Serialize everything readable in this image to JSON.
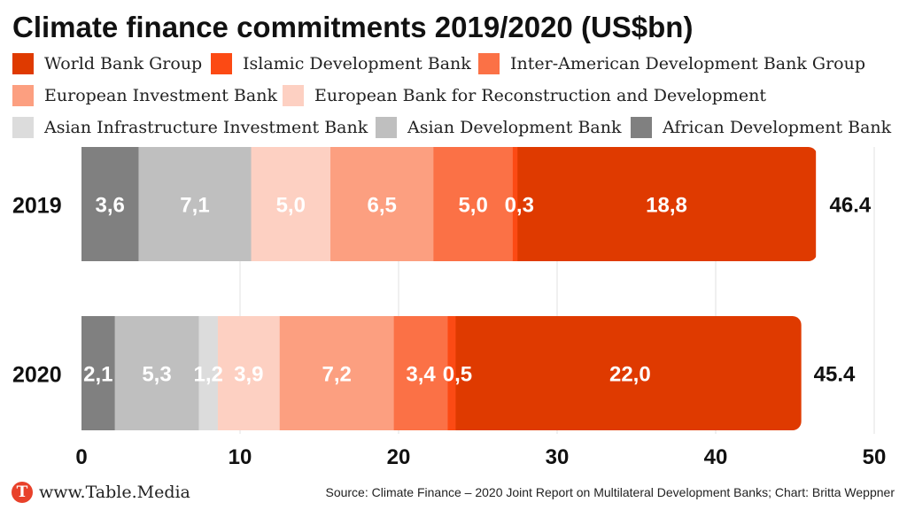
{
  "chart_data": {
    "type": "bar",
    "orientation": "horizontal",
    "stacked": true,
    "title": "Climate finance commitments 2019/2020 (US$bn)",
    "xlabel": "",
    "ylabel": "",
    "xlim": [
      0,
      50
    ],
    "x_ticks": [
      "0",
      "10",
      "20",
      "30",
      "40",
      "50"
    ],
    "grid": "vertical",
    "legend_position": "top",
    "categories": [
      "2019",
      "2020"
    ],
    "totals": [
      46.4,
      45.4
    ],
    "total_labels": [
      "46.4",
      "45.4"
    ],
    "series": [
      {
        "name": "African Development Bank",
        "color": "#808080",
        "values": [
          3.6,
          2.1
        ],
        "labels": [
          "3,6",
          "2,1"
        ]
      },
      {
        "name": "Asian Development Bank",
        "color": "#bfbfbf",
        "values": [
          7.1,
          5.3
        ],
        "labels": [
          "7,1",
          "5,3"
        ]
      },
      {
        "name": "Asian Infrastructure Investment Bank",
        "color": "#dcdcdc",
        "values": [
          0,
          1.2
        ],
        "labels": [
          "",
          "1,2"
        ]
      },
      {
        "name": "European Bank for Reconstruction and Development",
        "color": "#fdd0c2",
        "values": [
          5.0,
          3.9
        ],
        "labels": [
          "5,0",
          "3,9"
        ]
      },
      {
        "name": "European Investment Bank",
        "color": "#fc9f80",
        "values": [
          6.5,
          7.2
        ],
        "labels": [
          "6,5",
          "7,2"
        ]
      },
      {
        "name": "Inter-American Development Bank Group",
        "color": "#fb7146",
        "values": [
          5.0,
          3.4
        ],
        "labels": [
          "5,0",
          "3,4"
        ]
      },
      {
        "name": "Islamic Development Bank",
        "color": "#fc4a14",
        "values": [
          0.3,
          0.5
        ],
        "labels": [
          "0,3",
          "0,5"
        ]
      },
      {
        "name": "World Bank Group",
        "color": "#df3a00",
        "values": [
          18.8,
          22.0
        ],
        "labels": [
          "18,8",
          "22,0"
        ]
      }
    ],
    "legend": [
      {
        "name": "World Bank Group",
        "color": "#df3a00"
      },
      {
        "name": "Islamic Development Bank",
        "color": "#fc4a14"
      },
      {
        "name": "Inter-American Development Bank Group",
        "color": "#fb7146"
      },
      {
        "name": "European Investment Bank",
        "color": "#fc9f80"
      },
      {
        "name": "European Bank for Reconstruction and Development",
        "color": "#fdd0c2"
      },
      {
        "name": "Asian Infrastructure Investment Bank",
        "color": "#dcdcdc"
      },
      {
        "name": "Asian Development Bank",
        "color": "#bfbfbf"
      },
      {
        "name": "African Development Bank",
        "color": "#808080"
      }
    ]
  },
  "footer": {
    "logo_letter": "T",
    "site": "www.Table.Media",
    "source": "Source: Climate Finance – 2020 Joint Report on Multilateral Development Banks; Chart: Britta Weppner"
  }
}
